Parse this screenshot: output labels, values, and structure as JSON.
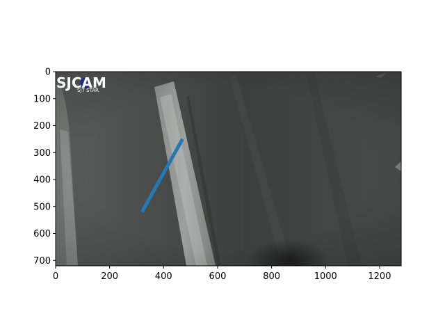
{
  "chart_data": {
    "type": "line",
    "background": "road-camera-photo",
    "xlim": [
      0,
      1280
    ],
    "ylim": [
      720,
      0
    ],
    "x_ticks": [
      "0",
      "200",
      "400",
      "600",
      "800",
      "1000",
      "1200"
    ],
    "y_ticks": [
      "0",
      "100",
      "200",
      "300",
      "400",
      "500",
      "600",
      "700"
    ],
    "series": [
      {
        "x": [
          320,
          470
        ],
        "y": [
          520,
          250
        ],
        "color": "#2678b2"
      }
    ],
    "grid": false
  },
  "watermark": {
    "brand": "SJCAM",
    "model": "SJ7 STAR"
  }
}
